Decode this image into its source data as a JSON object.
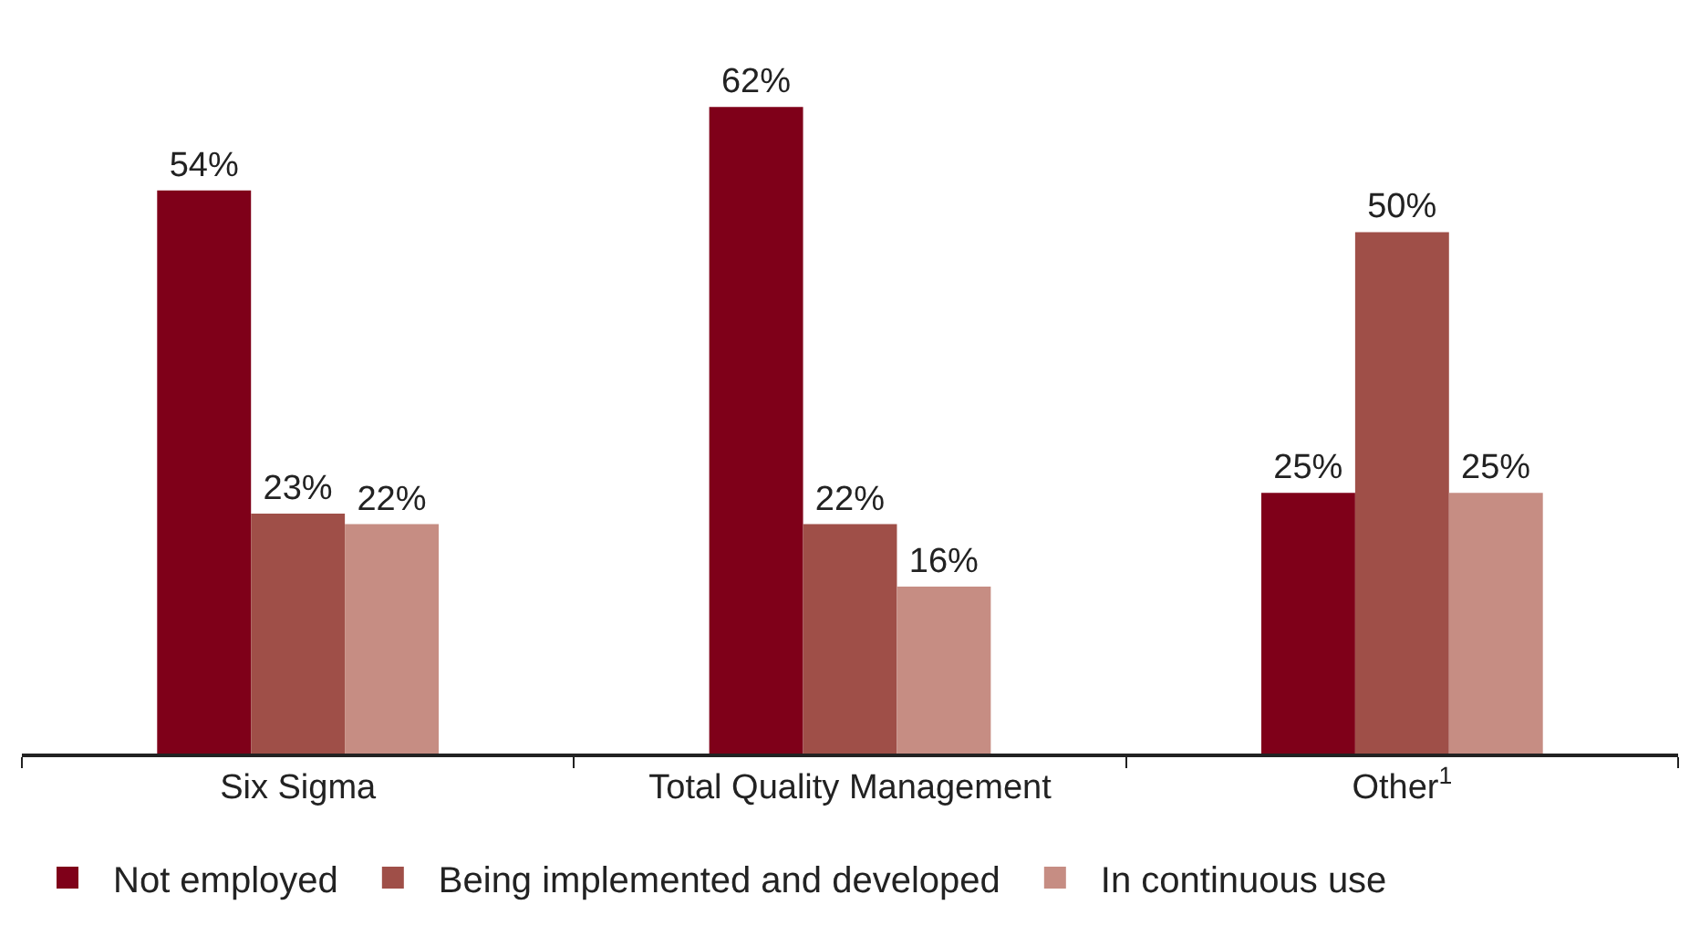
{
  "chart_data": {
    "type": "bar",
    "categories": [
      "Six Sigma",
      "Total Quality Management",
      "Other$^{1}$"
    ],
    "series": [
      {
        "name": "Not employed",
        "color": "#7f0019",
        "values": [
          54,
          62,
          25
        ],
        "value_labels": [
          "54%",
          "62%",
          "25%"
        ]
      },
      {
        "name": "Being implemented and developed",
        "color": "#9f4f48",
        "values": [
          23,
          22,
          50
        ],
        "value_labels": [
          "23%",
          "22%",
          "50%"
        ]
      },
      {
        "name": "In continuous use",
        "color": "#c68d83",
        "values": [
          22,
          16,
          25
        ],
        "value_labels": [
          "22%",
          "16%",
          "25%"
        ]
      }
    ],
    "legend": "bottom"
  }
}
